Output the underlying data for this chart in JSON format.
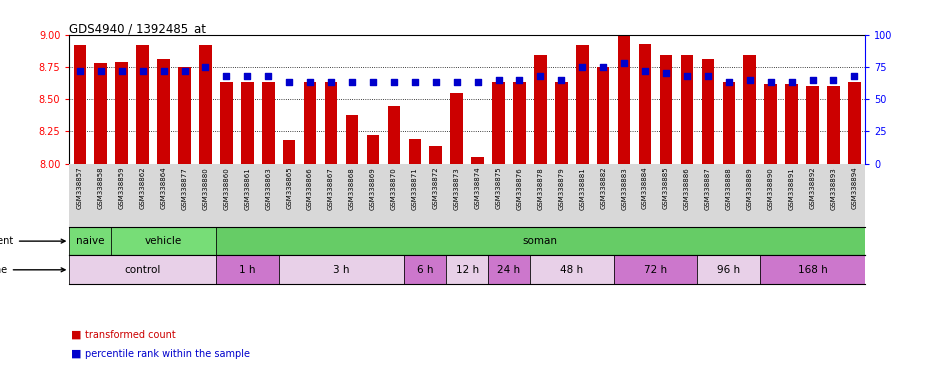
{
  "title": "GDS4940 / 1392485_at",
  "samples": [
    "GSM338857",
    "GSM338858",
    "GSM338859",
    "GSM338862",
    "GSM338864",
    "GSM338877",
    "GSM338880",
    "GSM338860",
    "GSM338861",
    "GSM338863",
    "GSM338865",
    "GSM338866",
    "GSM338867",
    "GSM338868",
    "GSM338869",
    "GSM338870",
    "GSM338871",
    "GSM338872",
    "GSM338873",
    "GSM338874",
    "GSM338875",
    "GSM338876",
    "GSM338878",
    "GSM338879",
    "GSM338881",
    "GSM338882",
    "GSM338883",
    "GSM338884",
    "GSM338885",
    "GSM338886",
    "GSM338887",
    "GSM338888",
    "GSM338889",
    "GSM338890",
    "GSM338891",
    "GSM338892",
    "GSM338893",
    "GSM338894"
  ],
  "bar_values": [
    8.92,
    8.78,
    8.79,
    8.92,
    8.81,
    8.75,
    8.92,
    8.63,
    8.63,
    8.63,
    8.18,
    8.63,
    8.63,
    8.38,
    8.22,
    8.45,
    8.19,
    8.14,
    8.55,
    8.05,
    8.63,
    8.63,
    8.84,
    8.63,
    8.92,
    8.75,
    9.02,
    8.93,
    8.84,
    8.84,
    8.81,
    8.63,
    8.84,
    8.62,
    8.62,
    8.6,
    8.6,
    8.63
  ],
  "percentile_values": [
    72,
    72,
    72,
    72,
    72,
    72,
    75,
    68,
    68,
    68,
    63,
    63,
    63,
    63,
    63,
    63,
    63,
    63,
    63,
    63,
    65,
    65,
    68,
    65,
    75,
    75,
    78,
    72,
    70,
    68,
    68,
    63,
    65,
    63,
    63,
    65,
    65,
    68
  ],
  "bar_color": "#cc0000",
  "percentile_color": "#0000cc",
  "ylim_left": [
    8.0,
    9.0
  ],
  "ylim_right": [
    0,
    100
  ],
  "yticks_left": [
    8.0,
    8.25,
    8.5,
    8.75,
    9.0
  ],
  "yticks_right": [
    0,
    25,
    50,
    75,
    100
  ],
  "agent_spans": [
    {
      "label": "naive",
      "start": 0,
      "end": 2,
      "color": "#77dd77"
    },
    {
      "label": "vehicle",
      "start": 2,
      "end": 7,
      "color": "#77dd77"
    },
    {
      "label": "soman",
      "start": 7,
      "end": 38,
      "color": "#66cc66"
    }
  ],
  "time_spans": [
    {
      "label": "control",
      "start": 0,
      "end": 7,
      "color": "#e8d0e8"
    },
    {
      "label": "1 h",
      "start": 7,
      "end": 10,
      "color": "#cc77cc"
    },
    {
      "label": "3 h",
      "start": 10,
      "end": 16,
      "color": "#e8d0e8"
    },
    {
      "label": "6 h",
      "start": 16,
      "end": 18,
      "color": "#cc77cc"
    },
    {
      "label": "12 h",
      "start": 18,
      "end": 20,
      "color": "#e8d0e8"
    },
    {
      "label": "24 h",
      "start": 20,
      "end": 22,
      "color": "#cc77cc"
    },
    {
      "label": "48 h",
      "start": 22,
      "end": 26,
      "color": "#e8d0e8"
    },
    {
      "label": "72 h",
      "start": 26,
      "end": 30,
      "color": "#cc77cc"
    },
    {
      "label": "96 h",
      "start": 30,
      "end": 33,
      "color": "#e8d0e8"
    },
    {
      "label": "168 h",
      "start": 33,
      "end": 38,
      "color": "#cc77cc"
    }
  ],
  "xtick_bg": "#d8d8d8",
  "grid_linestyle": "dotted",
  "background_color": "#ffffff"
}
